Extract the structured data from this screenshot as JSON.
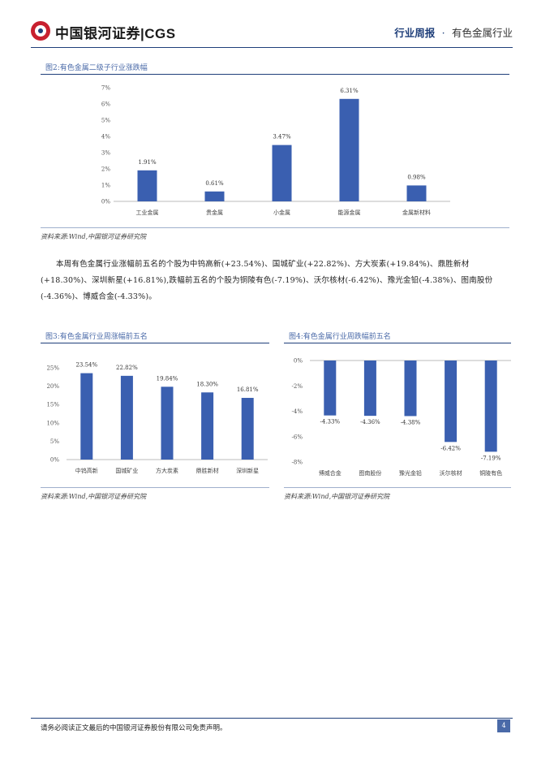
{
  "header": {
    "logo_text": "中国银河证券|CGS",
    "report_type": "行业周报",
    "separator": "·",
    "industry": "有色金属行业"
  },
  "figure2": {
    "title": "图2:有色金属二级子行业涨跌幅",
    "source": "资料来源:Wind,中国银河证券研究院"
  },
  "paragraph": "本周有色金属行业涨幅前五名的个股为中钨高新(+23.54%)、国城矿业(+22.82%)、方大炭素(+19.84%)、鼎胜新材(+18.30%)、深圳新星(+16.81%),跌幅前五名的个股为铜陵有色(-7.19%)、沃尔核材(-6.42%)、豫光金铅(-4.38%)、图南股份(-4.36%)、博威合金(-4.33%)。",
  "figure3": {
    "title": "图3:有色金属行业周涨幅前五名",
    "source": "资料来源:Wind,中国银河证券研究院"
  },
  "figure4": {
    "title": "图4:有色金属行业周跌幅前五名",
    "source": "资料来源:Wind,中国银河证券研究院"
  },
  "footer": {
    "disclaimer": "请务必阅读正文最后的中国银河证券股份有限公司免责声明。",
    "page_number": "4"
  },
  "colors": {
    "bar": "#3a5fb0",
    "accent": "#1f3f7a"
  },
  "chart_data": [
    {
      "type": "bar",
      "categories": [
        "工业金属",
        "贵金属",
        "小金属",
        "能源金属",
        "金属新材料"
      ],
      "values": [
        1.91,
        0.61,
        3.47,
        6.31,
        0.98
      ],
      "data_labels": [
        "1.91%",
        "0.61%",
        "3.47%",
        "6.31%",
        "0.98%"
      ],
      "ylim": [
        0,
        7
      ],
      "yticks": [
        0,
        1,
        2,
        3,
        4,
        5,
        6,
        7
      ],
      "ytick_labels": [
        "0%",
        "1%",
        "2%",
        "3%",
        "4%",
        "5%",
        "6%",
        "7%"
      ],
      "grid": false
    },
    {
      "type": "bar",
      "categories": [
        "中钨高新",
        "国城矿业",
        "方大炭素",
        "鼎胜新材",
        "深圳新星"
      ],
      "values": [
        23.54,
        22.82,
        19.84,
        18.3,
        16.81
      ],
      "data_labels": [
        "23.54%",
        "22.82%",
        "19.84%",
        "18.30%",
        "16.81%"
      ],
      "ylim": [
        0,
        25
      ],
      "yticks": [
        0,
        5,
        10,
        15,
        20,
        25
      ],
      "ytick_labels": [
        "0%",
        "5%",
        "10%",
        "15%",
        "20%",
        "25%"
      ],
      "grid": false
    },
    {
      "type": "bar",
      "categories": [
        "博威合金",
        "图南股份",
        "豫光金铅",
        "沃尔核材",
        "铜陵有色"
      ],
      "values": [
        -4.33,
        -4.36,
        -4.38,
        -6.42,
        -7.19
      ],
      "data_labels": [
        "-4.33%",
        "-4.36%",
        "-4.38%",
        "-6.42%",
        "-7.19%"
      ],
      "ylim": [
        -8,
        0
      ],
      "yticks": [
        -8,
        -6,
        -4,
        -2,
        0
      ],
      "ytick_labels": [
        "-8%",
        "-6%",
        "-4%",
        "-2%",
        "0%"
      ],
      "grid": false
    }
  ]
}
